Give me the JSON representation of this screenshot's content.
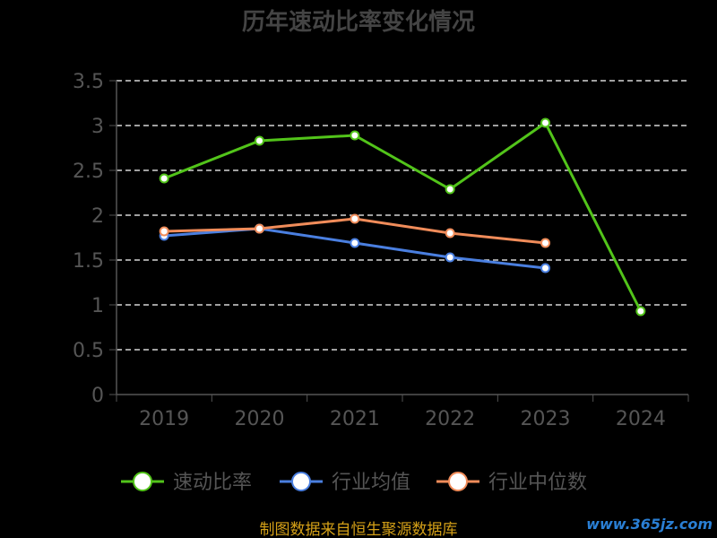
{
  "chart_data": {
    "type": "line",
    "title": "历年速动比率变化情况",
    "categories": [
      "2019",
      "2020",
      "2021",
      "2022",
      "2023",
      "2024"
    ],
    "ylim": [
      0,
      3.5
    ],
    "yticks": [
      "0",
      "0.5",
      "1",
      "1.5",
      "2",
      "2.5",
      "3",
      "3.5"
    ],
    "grid": true,
    "legend_position": "bottom",
    "series": [
      {
        "name": "速动比率",
        "color": "#52c41a",
        "values": [
          2.41,
          2.83,
          2.89,
          2.29,
          3.03,
          0.93
        ]
      },
      {
        "name": "行业均值",
        "color": "#4a7fe0",
        "values": [
          1.77,
          1.85,
          1.69,
          1.53,
          1.41,
          null
        ]
      },
      {
        "name": "行业中位数",
        "color": "#f08c5a",
        "values": [
          1.82,
          1.85,
          1.96,
          1.8,
          1.69,
          null
        ]
      }
    ]
  },
  "source_text": "制图数据来自恒生聚源数据库",
  "watermark_text": "www.365jz.com"
}
